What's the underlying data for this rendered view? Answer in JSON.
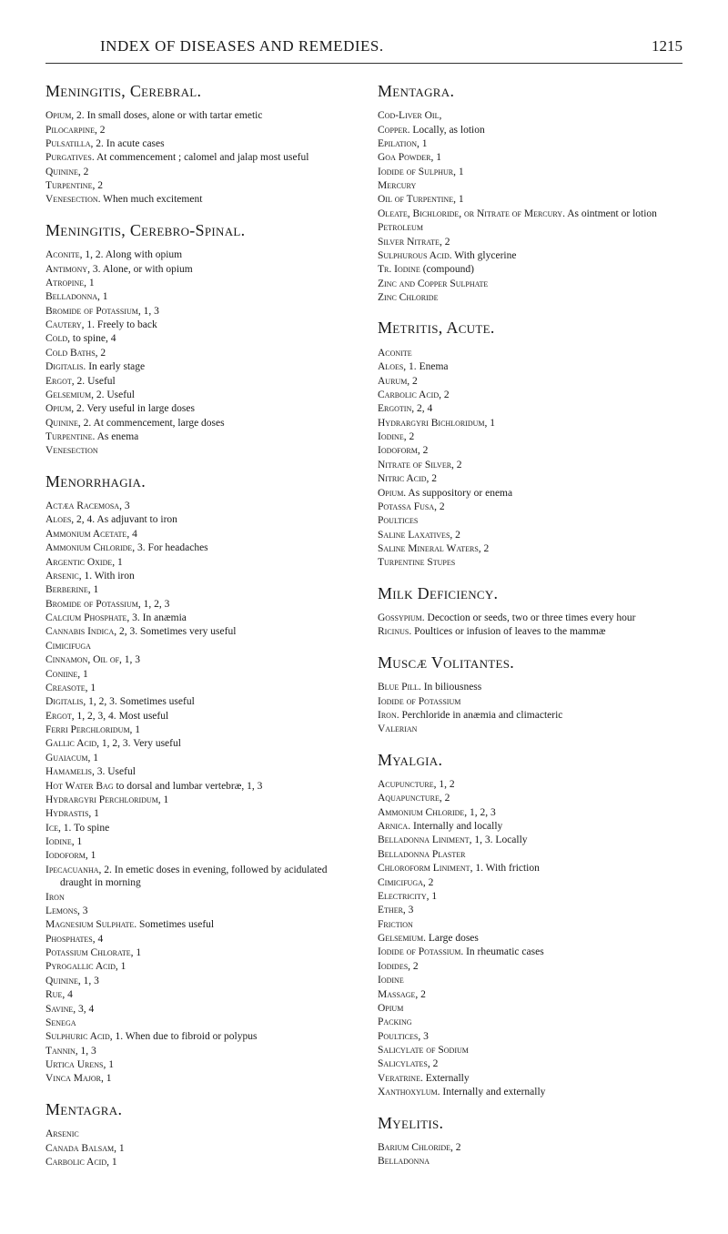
{
  "header": {
    "title": "INDEX OF DISEASES AND REMEDIES.",
    "pageNumber": "1215"
  },
  "left": [
    {
      "title": "Meningitis, Cerebral.",
      "entries": [
        {
          "cap": "Opium, 2.",
          "rest": " In small doses, alone or with tartar emetic"
        },
        {
          "cap": "Pilocarpine, 2",
          "rest": ""
        },
        {
          "cap": "Pulsatilla, 2.",
          "rest": " In acute cases"
        },
        {
          "cap": "Purgatives.",
          "rest": " At commencement ; calomel and jalap most useful"
        },
        {
          "cap": "Quinine, 2",
          "rest": ""
        },
        {
          "cap": "Turpentine, 2",
          "rest": ""
        },
        {
          "cap": "Venesection.",
          "rest": " When much excitement"
        }
      ]
    },
    {
      "title": "Meningitis, Cerebro-Spinal.",
      "entries": [
        {
          "cap": "Aconite, 1, 2.",
          "rest": " Along with opium"
        },
        {
          "cap": "Antimony, 3.",
          "rest": " Alone, or with opium"
        },
        {
          "cap": "Atropine, 1",
          "rest": ""
        },
        {
          "cap": "Belladonna, 1",
          "rest": ""
        },
        {
          "cap": "Bromide of Potassium, 1, 3",
          "rest": ""
        },
        {
          "cap": "Cautery, 1.",
          "rest": " Freely to back"
        },
        {
          "cap": "Cold,",
          "rest": " to spine, 4"
        },
        {
          "cap": "Cold Baths, 2",
          "rest": ""
        },
        {
          "cap": "Digitalis.",
          "rest": " In early stage"
        },
        {
          "cap": "Ergot, 2.",
          "rest": " Useful"
        },
        {
          "cap": "Gelsemium, 2.",
          "rest": " Useful"
        },
        {
          "cap": "Opium, 2.",
          "rest": " Very useful in large doses"
        },
        {
          "cap": "Quinine, 2.",
          "rest": " At commencement, large doses"
        },
        {
          "cap": "Turpentine.",
          "rest": " As enema"
        },
        {
          "cap": "Venesection",
          "rest": ""
        }
      ]
    },
    {
      "title": "Menorrhagia.",
      "entries": [
        {
          "cap": "Actæa Racemosa, 3",
          "rest": ""
        },
        {
          "cap": "Aloes, 2, 4.",
          "rest": " As adjuvant to iron"
        },
        {
          "cap": "Ammonium Acetate, 4",
          "rest": ""
        },
        {
          "cap": "Ammonium Chloride, 3.",
          "rest": " For headaches"
        },
        {
          "cap": "Argentic Oxide, 1",
          "rest": ""
        },
        {
          "cap": "Arsenic, 1.",
          "rest": " With iron"
        },
        {
          "cap": "Berberine, 1",
          "rest": ""
        },
        {
          "cap": "Bromide of Potassium, 1, 2, 3",
          "rest": ""
        },
        {
          "cap": "Calcium Phosphate, 3.",
          "rest": " In anæmia"
        },
        {
          "cap": "Cannabis Indica, 2, 3.",
          "rest": " Sometimes very useful"
        },
        {
          "cap": "Cimicifuga",
          "rest": ""
        },
        {
          "cap": "Cinnamon, Oil of, 1, 3",
          "rest": ""
        },
        {
          "cap": "Coniine, 1",
          "rest": ""
        },
        {
          "cap": "Creasote, 1",
          "rest": ""
        },
        {
          "cap": "Digitalis, 1, 2, 3.",
          "rest": " Sometimes useful"
        },
        {
          "cap": "Ergot, 1, 2, 3, 4.",
          "rest": " Most useful"
        },
        {
          "cap": "Ferri Perchloridum, 1",
          "rest": ""
        },
        {
          "cap": "Gallic Acid, 1, 2, 3.",
          "rest": " Very useful"
        },
        {
          "cap": "Guaiacum, 1",
          "rest": ""
        },
        {
          "cap": "Hamamelis, 3.",
          "rest": " Useful"
        },
        {
          "cap": "Hot Water Bag",
          "rest": " to dorsal and lumbar vertebræ, 1, 3"
        },
        {
          "cap": "Hydrargyri Perchloridum, 1",
          "rest": ""
        },
        {
          "cap": "Hydrastis, 1",
          "rest": ""
        },
        {
          "cap": "Ice, 1.",
          "rest": " To spine"
        },
        {
          "cap": "Iodine, 1",
          "rest": ""
        },
        {
          "cap": "Iodoform, 1",
          "rest": ""
        },
        {
          "cap": "Ipecacuanha, 2.",
          "rest": " In emetic doses in evening, followed by acidulated draught in morning"
        },
        {
          "cap": "Iron",
          "rest": ""
        },
        {
          "cap": "Lemons, 3",
          "rest": ""
        },
        {
          "cap": "Magnesium Sulphate.",
          "rest": " Sometimes useful"
        },
        {
          "cap": "Phosphates, 4",
          "rest": ""
        },
        {
          "cap": "Potassium Chlorate, 1",
          "rest": ""
        },
        {
          "cap": "Pyrogallic Acid, 1",
          "rest": ""
        },
        {
          "cap": "Quinine, 1, 3",
          "rest": ""
        },
        {
          "cap": "Rue, 4",
          "rest": ""
        },
        {
          "cap": "Savine, 3, 4",
          "rest": ""
        },
        {
          "cap": "Senega",
          "rest": ""
        },
        {
          "cap": "Sulphuric Acid, 1.",
          "rest": " When due to fibroid or polypus"
        },
        {
          "cap": "Tannin, 1, 3",
          "rest": ""
        },
        {
          "cap": "Urtica Urens, 1",
          "rest": ""
        },
        {
          "cap": "Vinca Major, 1",
          "rest": ""
        }
      ]
    },
    {
      "title": "Mentagra.",
      "entries": [
        {
          "cap": "Arsenic",
          "rest": ""
        },
        {
          "cap": "Canada Balsam, 1",
          "rest": ""
        },
        {
          "cap": "Carbolic Acid, 1",
          "rest": ""
        }
      ]
    }
  ],
  "right": [
    {
      "title": "Mentagra.",
      "entries": [
        {
          "cap": "Cod-Liver Oil,",
          "rest": ""
        },
        {
          "cap": "Copper.",
          "rest": " Locally, as lotion"
        },
        {
          "cap": "Epilation, 1",
          "rest": ""
        },
        {
          "cap": "Goa Powder, 1",
          "rest": ""
        },
        {
          "cap": "Iodide of Sulphur, 1",
          "rest": ""
        },
        {
          "cap": "Mercury",
          "rest": ""
        },
        {
          "cap": "Oil of Turpentine, 1",
          "rest": ""
        },
        {
          "cap": "Oleate, Bichloride, or Nitrate of Mercury.",
          "rest": " As ointment or lotion"
        },
        {
          "cap": "Petroleum",
          "rest": ""
        },
        {
          "cap": "Silver Nitrate, 2",
          "rest": ""
        },
        {
          "cap": "Sulphurous Acid.",
          "rest": " With glycerine"
        },
        {
          "cap": "Tr. Iodine",
          "rest": " (compound)"
        },
        {
          "cap": "Zinc and Copper Sulphate",
          "rest": ""
        },
        {
          "cap": "Zinc Chloride",
          "rest": ""
        }
      ]
    },
    {
      "title": "Metritis, Acute.",
      "entries": [
        {
          "cap": "Aconite",
          "rest": ""
        },
        {
          "cap": "Aloes, 1.",
          "rest": " Enema"
        },
        {
          "cap": "Aurum, 2",
          "rest": ""
        },
        {
          "cap": "Carbolic Acid, 2",
          "rest": ""
        },
        {
          "cap": "Ergotin, 2, 4",
          "rest": ""
        },
        {
          "cap": "Hydrargyri Bichloridum, 1",
          "rest": ""
        },
        {
          "cap": "Iodine, 2",
          "rest": ""
        },
        {
          "cap": "Iodoform, 2",
          "rest": ""
        },
        {
          "cap": "Nitrate of Silver, 2",
          "rest": ""
        },
        {
          "cap": "Nitric Acid, 2",
          "rest": ""
        },
        {
          "cap": "Opium.",
          "rest": " As suppository or enema"
        },
        {
          "cap": "Potassa Fusa, 2",
          "rest": ""
        },
        {
          "cap": "Poultices",
          "rest": ""
        },
        {
          "cap": "Saline Laxatives, 2",
          "rest": ""
        },
        {
          "cap": "Saline Mineral Waters, 2",
          "rest": ""
        },
        {
          "cap": "Turpentine Stupes",
          "rest": ""
        }
      ]
    },
    {
      "title": "Milk Deficiency.",
      "entries": [
        {
          "cap": "Gossypium.",
          "rest": " Decoction or seeds, two or three times every hour"
        },
        {
          "cap": "Ricinus.",
          "rest": " Poultices or infusion of leaves to the mammæ"
        }
      ]
    },
    {
      "title": "Muscæ Volitantes.",
      "entries": [
        {
          "cap": "Blue Pill.",
          "rest": " In biliousness"
        },
        {
          "cap": "Iodide of Potassium",
          "rest": ""
        },
        {
          "cap": "Iron.",
          "rest": " Perchloride in anæmia and climacteric"
        },
        {
          "cap": "Valerian",
          "rest": ""
        }
      ]
    },
    {
      "title": "Myalgia.",
      "entries": [
        {
          "cap": "Acupuncture, 1, 2",
          "rest": ""
        },
        {
          "cap": "Aquapuncture, 2",
          "rest": ""
        },
        {
          "cap": "Ammonium Chloride, 1, 2, 3",
          "rest": ""
        },
        {
          "cap": "Arnica.",
          "rest": " Internally and locally"
        },
        {
          "cap": "Belladonna Liniment, 1, 3.",
          "rest": " Locally"
        },
        {
          "cap": "Belladonna Plaster",
          "rest": ""
        },
        {
          "cap": "Chloroform Liniment, 1.",
          "rest": " With friction"
        },
        {
          "cap": "Cimicifuga, 2",
          "rest": ""
        },
        {
          "cap": "Electricity, 1",
          "rest": ""
        },
        {
          "cap": "Ether, 3",
          "rest": ""
        },
        {
          "cap": "Friction",
          "rest": ""
        },
        {
          "cap": "Gelsemium.",
          "rest": " Large doses"
        },
        {
          "cap": "Iodide of Potassium.",
          "rest": " In rheumatic cases"
        },
        {
          "cap": "Iodides, 2",
          "rest": ""
        },
        {
          "cap": "Iodine",
          "rest": ""
        },
        {
          "cap": "Massage, 2",
          "rest": ""
        },
        {
          "cap": "Opium",
          "rest": ""
        },
        {
          "cap": "Packing",
          "rest": ""
        },
        {
          "cap": "Poultices, 3",
          "rest": ""
        },
        {
          "cap": "Salicylate of Sodium",
          "rest": ""
        },
        {
          "cap": "Salicylates, 2",
          "rest": ""
        },
        {
          "cap": "Veratrine.",
          "rest": " Externally"
        },
        {
          "cap": "Xanthoxylum.",
          "rest": " Internally and externally"
        }
      ]
    },
    {
      "title": "Myelitis.",
      "entries": [
        {
          "cap": "Barium Chloride, 2",
          "rest": ""
        },
        {
          "cap": "Belladonna",
          "rest": ""
        }
      ]
    }
  ]
}
